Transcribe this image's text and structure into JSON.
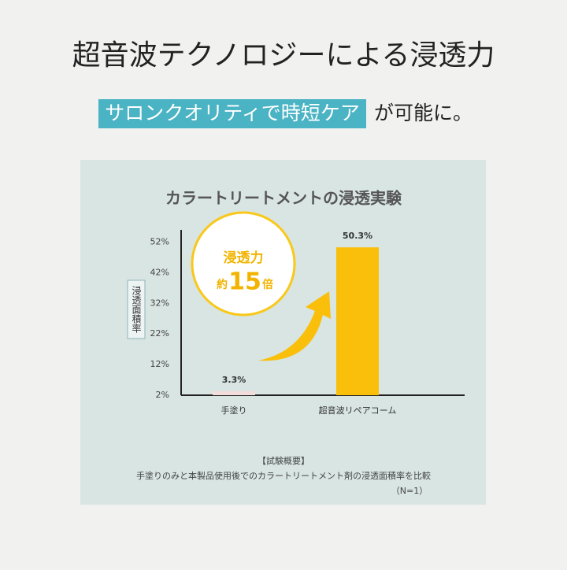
{
  "header": {
    "title": "超音波テクノロジーによる浸透力",
    "highlight": "サロンクオリティで時短ケア",
    "subtitle_rest": "が可能に。"
  },
  "chart_data": {
    "type": "bar",
    "title": "カラートリートメントの浸透実験",
    "y_label": "浸透面積率",
    "categories": [
      "手塗り",
      "超音波リペアコーム"
    ],
    "values": [
      3.3,
      50.3
    ],
    "value_labels": [
      "3.3%",
      "50.3%"
    ],
    "colors": [
      "#f3dcdc",
      "#f9bf0a"
    ],
    "ylim": [
      2,
      56
    ],
    "yticks": [
      {
        "value": 2,
        "label": "2%"
      },
      {
        "value": 12,
        "label": "12%"
      },
      {
        "value": 22,
        "label": "22%"
      },
      {
        "value": 32,
        "label": "32%"
      },
      {
        "value": 42,
        "label": "42%"
      },
      {
        "value": 52,
        "label": "52%"
      }
    ],
    "annotation": {
      "line1": "浸透力",
      "prefix": "約",
      "number": "15",
      "suffix": "倍"
    }
  },
  "footnote": {
    "heading": "【試験概要】",
    "text": "手塗りのみと本製品使用後でのカラートリートメント剤の浸透面積率を比較",
    "n": "（N=1）"
  }
}
